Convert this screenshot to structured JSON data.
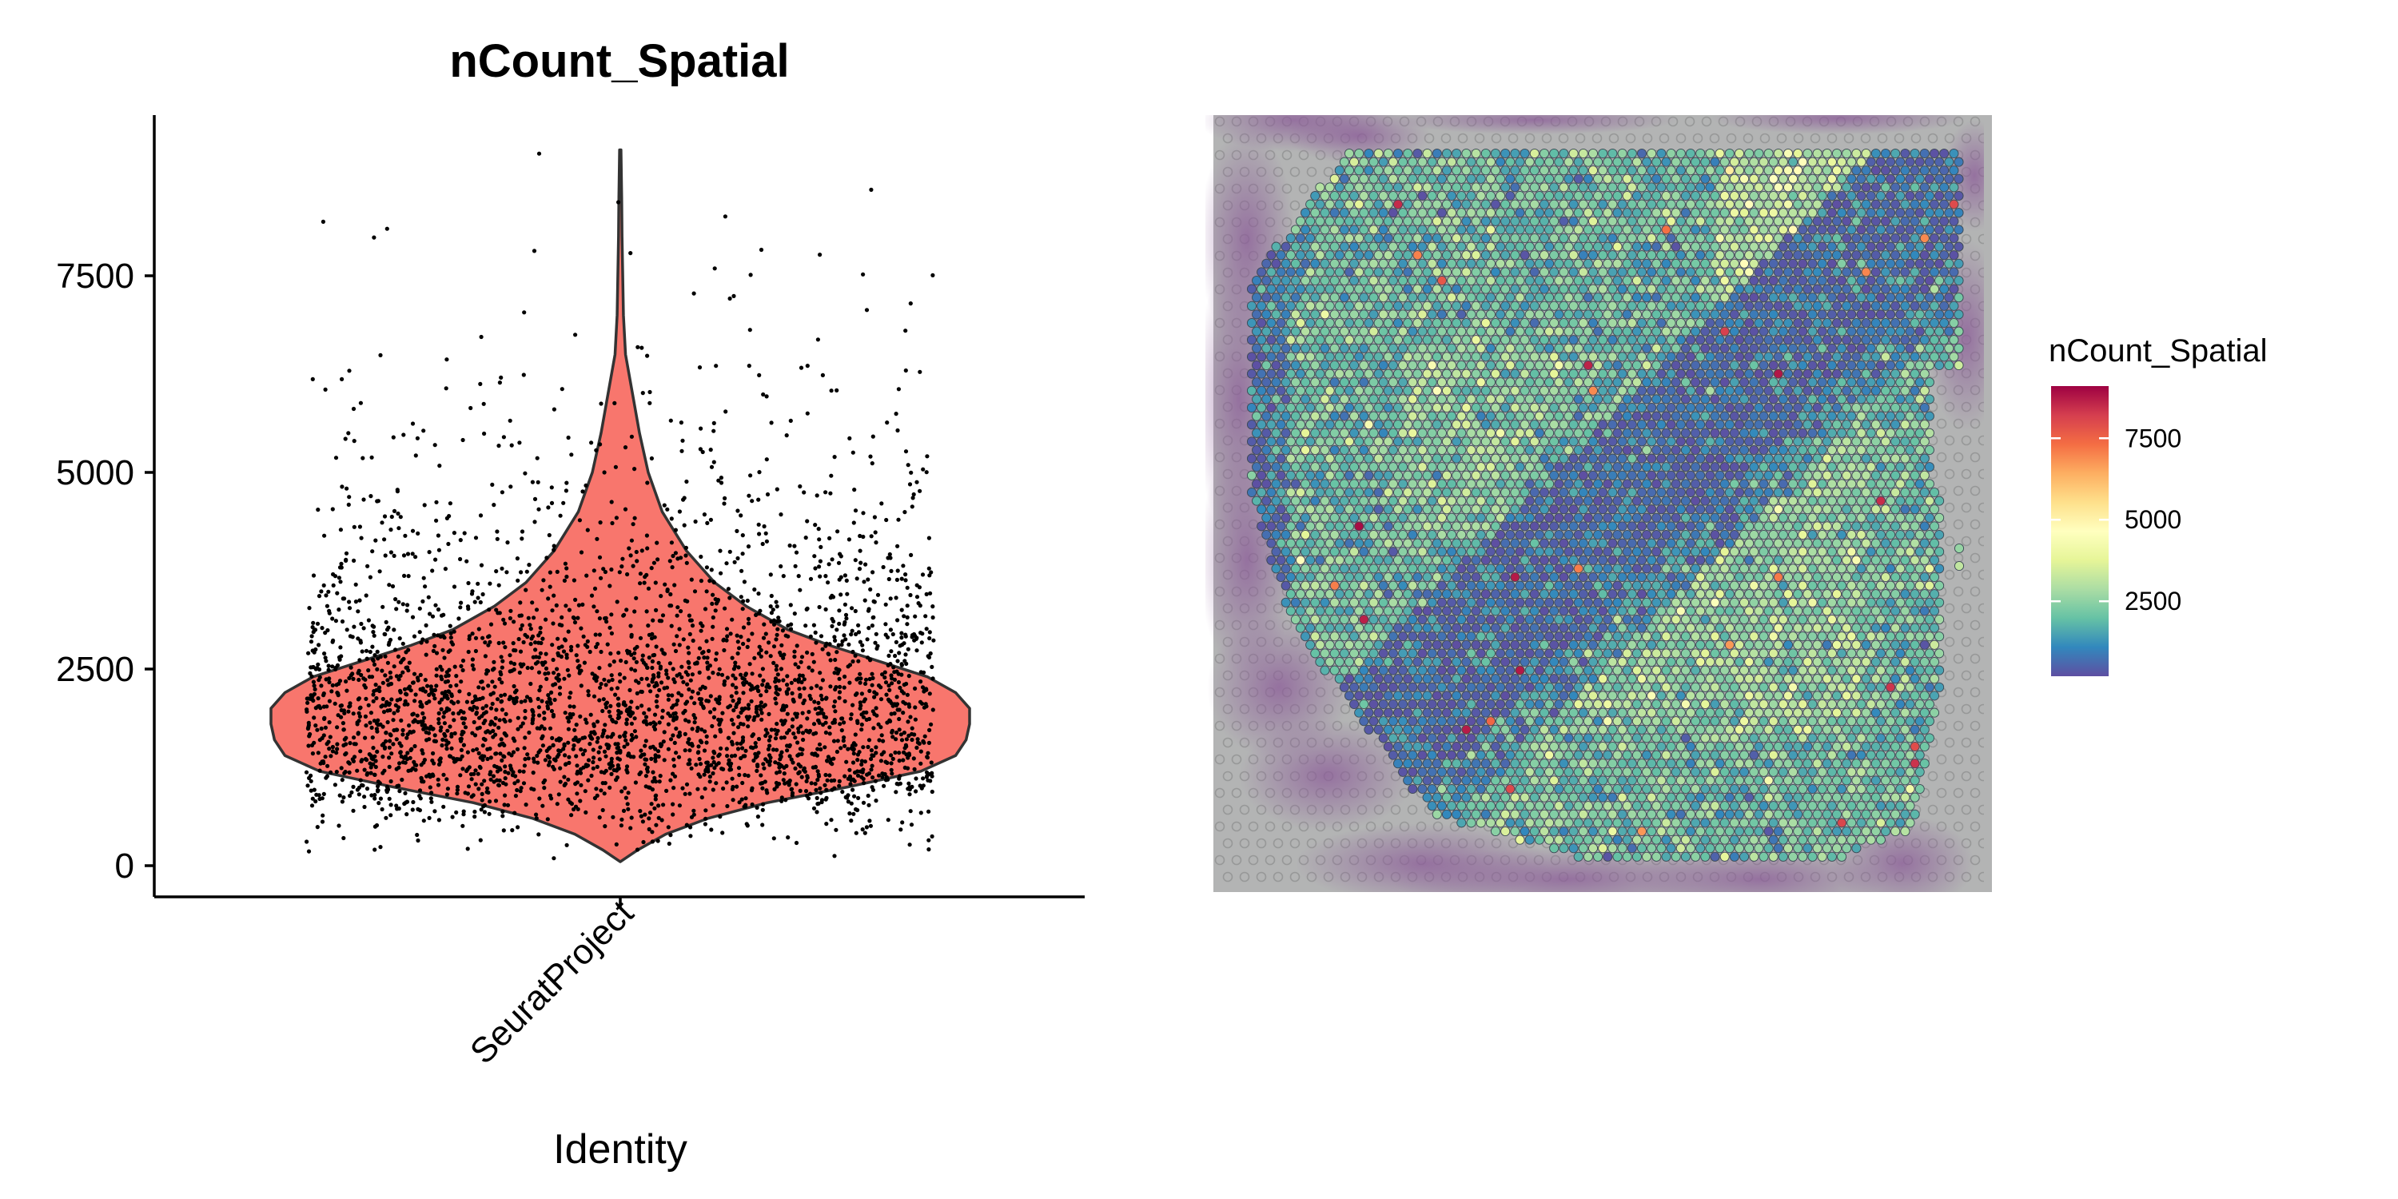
{
  "chart_data": [
    {
      "type": "violin",
      "title": "nCount_Spatial",
      "xlabel": "Identity",
      "ylabel": "",
      "categories": [
        "SeuratProject"
      ],
      "ylim": [
        0,
        9200
      ],
      "yticks": [
        0,
        2500,
        5000,
        7500
      ],
      "ytick_labels": [
        "0",
        "2500",
        "5000",
        "7500"
      ],
      "fill_color": "#F8766D",
      "point_color": "#000000",
      "violin_profile": [
        {
          "y": 50,
          "w": 0.0
        },
        {
          "y": 200,
          "w": 0.05
        },
        {
          "y": 400,
          "w": 0.13
        },
        {
          "y": 600,
          "w": 0.25
        },
        {
          "y": 800,
          "w": 0.42
        },
        {
          "y": 1000,
          "w": 0.65
        },
        {
          "y": 1200,
          "w": 0.86
        },
        {
          "y": 1400,
          "w": 0.96
        },
        {
          "y": 1600,
          "w": 0.99
        },
        {
          "y": 1800,
          "w": 1.0
        },
        {
          "y": 2000,
          "w": 1.0
        },
        {
          "y": 2200,
          "w": 0.96
        },
        {
          "y": 2400,
          "w": 0.88
        },
        {
          "y": 2600,
          "w": 0.74
        },
        {
          "y": 2800,
          "w": 0.6
        },
        {
          "y": 3000,
          "w": 0.48
        },
        {
          "y": 3300,
          "w": 0.36
        },
        {
          "y": 3600,
          "w": 0.27
        },
        {
          "y": 4000,
          "w": 0.19
        },
        {
          "y": 4500,
          "w": 0.12
        },
        {
          "y": 5000,
          "w": 0.08
        },
        {
          "y": 5500,
          "w": 0.055
        },
        {
          "y": 6000,
          "w": 0.035
        },
        {
          "y": 6500,
          "w": 0.015
        },
        {
          "y": 7000,
          "w": 0.009
        },
        {
          "y": 7500,
          "w": 0.007
        },
        {
          "y": 8000,
          "w": 0.005
        },
        {
          "y": 8500,
          "w": 0.004
        },
        {
          "y": 9100,
          "w": 0.002
        }
      ],
      "n_points": 3300,
      "median": 1900
    },
    {
      "type": "heatmap",
      "subtype": "spatial-feature-plot",
      "feature": "nCount_Spatial",
      "legend_title": "nCount_Spatial",
      "legend_ticks": [
        2500,
        5000,
        7500
      ],
      "legend_tick_labels": [
        "2500",
        "5000",
        "7500"
      ],
      "value_range": [
        200,
        9100
      ],
      "palette": "Spectral (reversed)",
      "gradient_colors": [
        "#5E4FA2",
        "#3288BD",
        "#66C2A5",
        "#ABDDA4",
        "#E6F598",
        "#FFFFBF",
        "#FEE08B",
        "#FDAE61",
        "#F46D43",
        "#D53E4F",
        "#9E0142"
      ],
      "background": "H&E tissue image",
      "legend_position": "right"
    }
  ]
}
